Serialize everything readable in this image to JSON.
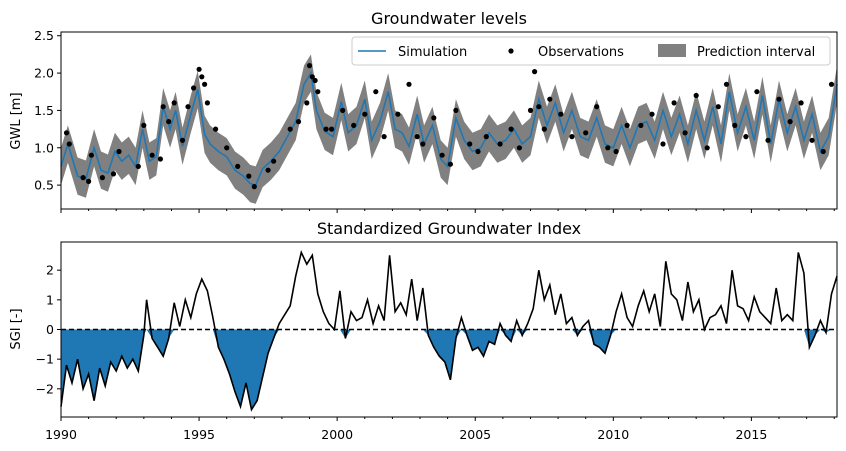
{
  "chart_data": [
    {
      "type": "line",
      "title": "Groundwater levels",
      "ylabel": "GWL [m]",
      "xlim": [
        1990,
        2018.1
      ],
      "ylim": [
        0.18,
        2.55
      ],
      "yticks": [
        0.5,
        1.0,
        1.5,
        2.0,
        2.5
      ],
      "ytick_labels": [
        "0.5",
        "1.0",
        "1.5",
        "2.0",
        "2.5"
      ],
      "legend": {
        "placement": "top-right",
        "entries": [
          "Simulation",
          "Observations",
          "Prediction interval"
        ]
      },
      "colors": {
        "simulation": "#1f77b4",
        "observations": "#000000",
        "interval": "#808080"
      },
      "series": [
        {
          "name": "Simulation",
          "x": [
            1990.0,
            1990.25,
            1990.6,
            1990.9,
            1991.2,
            1991.45,
            1991.7,
            1991.95,
            1992.2,
            1992.45,
            1992.7,
            1992.95,
            1993.2,
            1993.45,
            1993.7,
            1993.95,
            1994.15,
            1994.4,
            1994.7,
            1994.95,
            1995.2,
            1995.4,
            1995.7,
            1996.0,
            1996.3,
            1996.6,
            1996.85,
            1997.05,
            1997.3,
            1997.6,
            1997.9,
            1998.2,
            1998.5,
            1998.8,
            1999.05,
            1999.25,
            1999.55,
            1999.85,
            2000.15,
            2000.4,
            2000.7,
            2001.0,
            2001.25,
            2001.55,
            2001.85,
            2002.1,
            2002.35,
            2002.6,
            2002.9,
            2003.15,
            2003.45,
            2003.75,
            2004.0,
            2004.3,
            2004.6,
            2004.9,
            2005.2,
            2005.5,
            2005.8,
            2006.1,
            2006.4,
            2006.7,
            2007.0,
            2007.3,
            2007.6,
            2007.9,
            2008.2,
            2008.5,
            2008.8,
            2009.1,
            2009.4,
            2009.7,
            2010.0,
            2010.3,
            2010.6,
            2010.9,
            2011.2,
            2011.5,
            2011.8,
            2012.1,
            2012.4,
            2012.7,
            2013.0,
            2013.3,
            2013.6,
            2013.9,
            2014.2,
            2014.5,
            2014.8,
            2015.1,
            2015.4,
            2015.7,
            2016.0,
            2016.3,
            2016.6,
            2016.9,
            2017.2,
            2017.5,
            2017.8,
            2018.1
          ],
          "y": [
            0.75,
            1.05,
            0.62,
            0.58,
            1.0,
            0.7,
            0.66,
            0.95,
            0.82,
            0.9,
            0.75,
            1.25,
            0.82,
            0.88,
            1.55,
            1.25,
            1.5,
            1.02,
            1.45,
            1.78,
            1.18,
            1.05,
            0.95,
            0.88,
            0.7,
            0.62,
            0.52,
            0.5,
            0.72,
            0.82,
            0.95,
            1.15,
            1.35,
            1.85,
            2.0,
            1.5,
            1.22,
            1.15,
            1.62,
            1.2,
            1.3,
            1.65,
            1.1,
            1.35,
            1.75,
            1.25,
            1.2,
            1.02,
            1.45,
            1.05,
            1.3,
            0.85,
            0.75,
            1.4,
            1.1,
            0.95,
            1.0,
            1.2,
            1.05,
            1.1,
            1.25,
            1.05,
            1.15,
            1.65,
            1.3,
            1.6,
            1.2,
            1.5,
            1.15,
            1.1,
            1.4,
            1.05,
            1.0,
            1.3,
            1.0,
            1.3,
            1.35,
            1.1,
            1.5,
            1.15,
            1.45,
            1.05,
            1.5,
            1.1,
            1.55,
            1.05,
            1.75,
            1.2,
            1.55,
            1.1,
            1.7,
            1.05,
            1.65,
            1.2,
            1.55,
            1.1,
            1.45,
            0.95,
            1.15,
            1.85
          ]
        }
      ],
      "observations": {
        "name": "Observations",
        "x": [
          1990.2,
          1990.3,
          1990.8,
          1991.0,
          1991.1,
          1991.5,
          1991.9,
          1992.1,
          1992.8,
          1993.0,
          1993.3,
          1993.6,
          1993.7,
          1993.9,
          1994.1,
          1994.4,
          1994.6,
          1994.8,
          1995.0,
          1995.1,
          1995.2,
          1995.3,
          1995.6,
          1996.0,
          1996.4,
          1996.8,
          1997.0,
          1997.5,
          1997.7,
          1998.3,
          1998.6,
          1998.9,
          1999.0,
          1999.1,
          1999.2,
          1999.3,
          1999.6,
          1999.8,
          2000.2,
          2000.6,
          2001.0,
          2001.4,
          2001.7,
          2002.2,
          2002.6,
          2002.9,
          2003.1,
          2003.5,
          2003.8,
          2004.1,
          2004.3,
          2004.8,
          2005.1,
          2005.4,
          2005.9,
          2006.3,
          2006.6,
          2007.0,
          2007.15,
          2007.3,
          2007.5,
          2007.7,
          2008.1,
          2008.5,
          2009.0,
          2009.4,
          2009.8,
          2010.1,
          2010.5,
          2011.0,
          2011.4,
          2011.8,
          2012.2,
          2012.6,
          2013.0,
          2013.4,
          2013.8,
          2014.1,
          2014.4,
          2014.8,
          2015.2,
          2015.6,
          2016.0,
          2016.4,
          2016.8,
          2017.2,
          2017.6,
          2017.9
        ],
        "y": [
          1.2,
          1.05,
          0.6,
          0.55,
          0.9,
          0.6,
          0.65,
          0.95,
          0.75,
          1.3,
          0.9,
          0.85,
          1.55,
          1.35,
          1.6,
          1.1,
          1.55,
          1.8,
          2.05,
          1.95,
          1.85,
          1.6,
          1.25,
          1.0,
          0.75,
          0.62,
          0.48,
          0.7,
          0.82,
          1.25,
          1.35,
          1.6,
          2.1,
          1.95,
          1.9,
          1.75,
          1.25,
          1.25,
          1.5,
          1.3,
          1.45,
          1.75,
          1.15,
          1.45,
          1.85,
          1.15,
          1.05,
          1.4,
          0.9,
          0.78,
          1.5,
          1.05,
          0.95,
          1.15,
          1.05,
          1.25,
          1.0,
          1.5,
          2.02,
          1.55,
          1.25,
          1.65,
          1.45,
          1.15,
          1.2,
          1.55,
          1.0,
          0.95,
          1.3,
          1.3,
          1.45,
          1.05,
          1.6,
          1.2,
          1.7,
          1.0,
          1.55,
          1.85,
          1.3,
          1.15,
          1.75,
          1.1,
          1.65,
          1.35,
          1.6,
          1.1,
          0.95,
          1.85
        ]
      },
      "prediction_interval": {
        "name": "Prediction interval",
        "half_width": 0.25
      }
    },
    {
      "type": "area",
      "title": "Standardized Groundwater Index",
      "ylabel": "SGI [-]",
      "xlim": [
        1990,
        2018.1
      ],
      "ylim": [
        -2.95,
        2.95
      ],
      "yticks": [
        -2,
        -1,
        0,
        1,
        2
      ],
      "ytick_labels": [
        "−2",
        "−1",
        "0",
        "1",
        "2"
      ],
      "xticks": [
        1990,
        1995,
        2000,
        2005,
        2010,
        2015
      ],
      "xtick_labels": [
        "1990",
        "1995",
        "2000",
        "2005",
        "2010",
        "2015"
      ],
      "reference_line": 0,
      "colors": {
        "line": "#000000",
        "negative_fill": "#1f77b4",
        "reference": "#000000"
      },
      "series": [
        {
          "name": "",
          "x": [
            1990.0,
            1990.2,
            1990.4,
            1990.6,
            1990.8,
            1991.0,
            1991.2,
            1991.4,
            1991.6,
            1991.8,
            1992.0,
            1992.2,
            1992.4,
            1992.6,
            1992.8,
            1993.0,
            1993.1,
            1993.3,
            1993.5,
            1993.7,
            1993.9,
            1994.1,
            1994.3,
            1994.5,
            1994.7,
            1994.9,
            1995.1,
            1995.3,
            1995.5,
            1995.7,
            1995.9,
            1996.1,
            1996.3,
            1996.5,
            1996.7,
            1996.9,
            1997.1,
            1997.3,
            1997.5,
            1997.7,
            1997.9,
            1998.1,
            1998.3,
            1998.5,
            1998.7,
            1998.9,
            1999.1,
            1999.3,
            1999.5,
            1999.7,
            1999.9,
            2000.1,
            2000.3,
            2000.5,
            2000.7,
            2000.9,
            2001.1,
            2001.3,
            2001.5,
            2001.7,
            2001.9,
            2002.1,
            2002.3,
            2002.5,
            2002.7,
            2002.9,
            2003.1,
            2003.3,
            2003.5,
            2003.7,
            2003.9,
            2004.1,
            2004.3,
            2004.5,
            2004.7,
            2004.9,
            2005.1,
            2005.3,
            2005.5,
            2005.7,
            2005.9,
            2006.1,
            2006.3,
            2006.5,
            2006.7,
            2006.9,
            2007.1,
            2007.3,
            2007.5,
            2007.7,
            2007.9,
            2008.1,
            2008.3,
            2008.5,
            2008.7,
            2008.9,
            2009.1,
            2009.3,
            2009.5,
            2009.7,
            2009.9,
            2010.1,
            2010.3,
            2010.5,
            2010.7,
            2010.9,
            2011.1,
            2011.3,
            2011.5,
            2011.7,
            2011.9,
            2012.1,
            2012.3,
            2012.5,
            2012.7,
            2012.9,
            2013.1,
            2013.3,
            2013.5,
            2013.7,
            2013.9,
            2014.1,
            2014.3,
            2014.5,
            2014.7,
            2014.9,
            2015.1,
            2015.3,
            2015.5,
            2015.7,
            2015.9,
            2016.1,
            2016.3,
            2016.5,
            2016.7,
            2016.9,
            2017.1,
            2017.3,
            2017.5,
            2017.7,
            2017.9,
            2018.1
          ],
          "y": [
            -2.6,
            -1.2,
            -1.8,
            -1.0,
            -2.0,
            -1.5,
            -2.4,
            -1.3,
            -1.9,
            -1.1,
            -1.4,
            -0.9,
            -1.3,
            -1.0,
            -1.4,
            -0.2,
            1.0,
            -0.3,
            -0.6,
            -0.9,
            -0.3,
            0.9,
            0.1,
            1.0,
            0.4,
            1.2,
            1.7,
            1.3,
            0.4,
            -0.6,
            -1.0,
            -1.5,
            -2.1,
            -2.6,
            -1.8,
            -2.7,
            -2.4,
            -1.6,
            -0.8,
            -0.3,
            0.2,
            0.5,
            0.8,
            1.8,
            2.6,
            2.2,
            2.5,
            1.2,
            0.6,
            0.2,
            0.0,
            1.3,
            -0.3,
            0.6,
            0.3,
            0.4,
            1.0,
            0.2,
            0.8,
            0.3,
            2.5,
            0.6,
            0.9,
            0.5,
            1.7,
            0.3,
            1.4,
            -0.2,
            -0.6,
            -0.9,
            -1.1,
            -1.7,
            -0.3,
            0.4,
            -0.2,
            -0.7,
            -0.6,
            -0.9,
            -0.4,
            -0.5,
            0.2,
            -0.2,
            -0.4,
            0.3,
            -0.2,
            0.2,
            0.7,
            2.0,
            1.0,
            1.5,
            0.5,
            1.2,
            0.2,
            0.4,
            -0.2,
            0.1,
            0.3,
            -0.5,
            -0.6,
            -0.8,
            -0.2,
            0.6,
            1.2,
            0.4,
            0.1,
            0.8,
            1.3,
            0.6,
            1.2,
            0.1,
            2.3,
            1.2,
            1.0,
            0.3,
            1.6,
            0.6,
            1.0,
            0.0,
            0.4,
            0.5,
            0.8,
            0.2,
            2.0,
            0.8,
            0.7,
            0.3,
            1.1,
            0.6,
            0.4,
            0.2,
            1.4,
            0.3,
            0.5,
            0.3,
            2.6,
            1.9,
            -0.6,
            -0.2,
            0.3,
            -0.1,
            1.2,
            1.8
          ]
        }
      ]
    }
  ]
}
